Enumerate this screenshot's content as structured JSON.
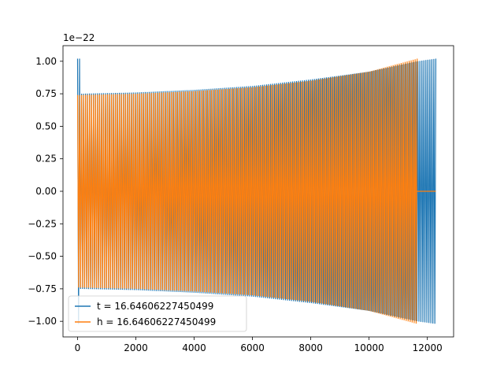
{
  "chart_data": {
    "type": "line",
    "title": "",
    "xlabel": "",
    "ylabel": "",
    "offset_label": "1e−22",
    "xlim": [
      -500,
      12900
    ],
    "ylim": [
      -1.12,
      1.12
    ],
    "x_ticks": [
      0,
      2000,
      4000,
      6000,
      8000,
      10000,
      12000
    ],
    "x_tick_labels": [
      "0",
      "2000",
      "4000",
      "6000",
      "8000",
      "10000",
      "12000"
    ],
    "y_ticks": [
      -1.0,
      -0.75,
      -0.5,
      -0.25,
      0.0,
      0.25,
      0.5,
      0.75,
      1.0
    ],
    "y_tick_labels": [
      "−1.00",
      "−0.75",
      "−0.50",
      "−0.25",
      "0.00",
      "0.25",
      "0.50",
      "0.75",
      "1.00"
    ],
    "grid": false,
    "legend_position": "lower-left",
    "series": [
      {
        "name": "t = 16.64606227450499",
        "color": "#1f77b4",
        "x_start": 0,
        "x_end": 12290,
        "amplitude_start": 0.75,
        "amplitude_end": 1.02,
        "initial_spike": 1.02,
        "envelope": [
          [
            0,
            0.75
          ],
          [
            2000,
            0.76
          ],
          [
            4000,
            0.78
          ],
          [
            6000,
            0.81
          ],
          [
            8000,
            0.86
          ],
          [
            10000,
            0.92
          ],
          [
            11650,
            1.0
          ],
          [
            12290,
            1.02
          ]
        ],
        "cycles": 180
      },
      {
        "name": "h = 16.64606227450499",
        "color": "#ff7f0e",
        "x_start": 0,
        "x_end": 11650,
        "amplitude_start": 0.74,
        "amplitude_end": 1.02,
        "envelope": [
          [
            0,
            0.74
          ],
          [
            2000,
            0.75
          ],
          [
            4000,
            0.77
          ],
          [
            6000,
            0.8
          ],
          [
            8000,
            0.85
          ],
          [
            10000,
            0.92
          ],
          [
            11650,
            1.02
          ]
        ],
        "flat_after": [
          11650,
          12290
        ],
        "cycles": 170
      }
    ]
  }
}
